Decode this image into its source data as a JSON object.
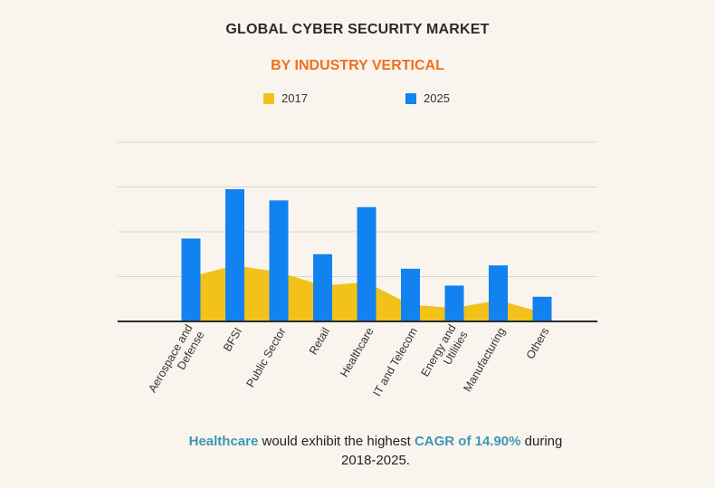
{
  "chart_data": {
    "type": "bar",
    "title": "GLOBAL CYBER SECURITY MARKET",
    "subtitle": "BY INDUSTRY VERTICAL",
    "categories": [
      "Aerospace and Defense",
      "BFSI",
      "Public Sector",
      "Retail",
      "Healthcare",
      "IT and Telecom",
      "Energy and Utilities",
      "Manufacturing",
      "Others"
    ],
    "series": [
      {
        "name": "2017",
        "type": "area",
        "color": "#f2c21b",
        "values": [
          20,
          25,
          22,
          16,
          17.5,
          7.5,
          6,
          9.5,
          4
        ]
      },
      {
        "name": "2025",
        "type": "bar",
        "color": "#1282f0",
        "values": [
          37,
          59,
          54,
          30,
          51,
          23.5,
          16,
          25,
          11
        ]
      }
    ],
    "ylim": [
      0,
      80
    ],
    "grid": true,
    "legend": "top-center"
  },
  "footnote": {
    "part1": "Healthcare",
    "part2": " would exhibit the highest ",
    "part3": "CAGR of 14.90%",
    "part4": " during 2018-2025."
  }
}
